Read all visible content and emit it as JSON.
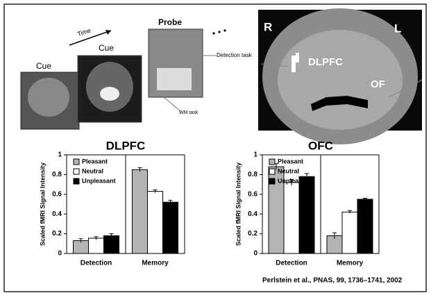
{
  "figure": {
    "time_label": "Time",
    "cue_1": "Cue",
    "cue_2": "Cue",
    "probe": "Probe",
    "detection_task": "Detection task",
    "wm_task": "WM task",
    "brain_r": "R",
    "brain_l": "L",
    "brain_dlpfc": "DLPFC",
    "brain_of": "OF",
    "citation": "Perlstein et al., PNAS, 99, 1736–1741, 2002"
  },
  "chart_data": [
    {
      "type": "bar",
      "title": "DLPFC",
      "y_label": "Scaled fMRI Signal Intensity",
      "categories": [
        "Detection",
        "Memory"
      ],
      "series": [
        {
          "name": "Pleasant",
          "color": "#b4b4b4",
          "values": [
            0.13,
            0.85
          ],
          "errors": [
            0.02,
            0.02
          ]
        },
        {
          "name": "Neutral",
          "color": "#ffffff",
          "values": [
            0.155,
            0.63
          ],
          "errors": [
            0.015,
            0.015
          ]
        },
        {
          "name": "Unpleasant",
          "color": "#000000",
          "values": [
            0.18,
            0.52
          ],
          "errors": [
            0.02,
            0.02
          ]
        }
      ],
      "ylim": [
        0,
        1
      ],
      "yticks": [
        0,
        0.2,
        0.4,
        0.6,
        0.8,
        1
      ]
    },
    {
      "type": "bar",
      "title": "OFC",
      "y_label": "Scaled fMRI Signal Intensity",
      "categories": [
        "Detection",
        "Memory"
      ],
      "series": [
        {
          "name": "Pleasant",
          "color": "#b4b4b4",
          "values": [
            0.88,
            0.18
          ],
          "errors": [
            0.03,
            0.03
          ]
        },
        {
          "name": "Neutral",
          "color": "#ffffff",
          "values": [
            0.72,
            0.42
          ],
          "errors": [
            0.03,
            0.015
          ]
        },
        {
          "name": "Unpleasant",
          "color": "#000000",
          "values": [
            0.78,
            0.55
          ],
          "errors": [
            0.03,
            0.01
          ]
        }
      ],
      "ylim": [
        0,
        1
      ],
      "yticks": [
        0,
        0.2,
        0.4,
        0.6,
        0.8,
        1
      ]
    }
  ]
}
